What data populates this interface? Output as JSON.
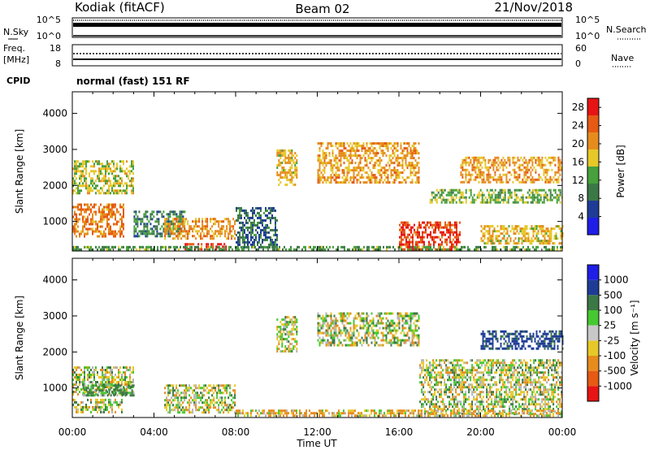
{
  "header": {
    "site": "Kodiak (fitACF)",
    "beam": "Beam 02",
    "date": "21/Nov/2018"
  },
  "noise_panel": {
    "left_label": "N.Sky",
    "right_label": "N.Search",
    "left_ticks": [
      "10^5",
      "10^0"
    ],
    "right_ticks": [
      "10^5",
      "10^0"
    ]
  },
  "freq_panel": {
    "left_label_1": "Freq.",
    "left_label_2": "[MHz]",
    "left_ticks": [
      "18",
      "8"
    ],
    "right_label": "Nave",
    "right_ticks": [
      "60",
      "0"
    ],
    "cpid_label": "CPID",
    "cpid_value": "normal (fast) 151 RF"
  },
  "colors": {
    "power_scale": [
      "#1e1ee6",
      "#1e3c96",
      "#3c7846",
      "#46a03c",
      "#e6c828",
      "#e68c1e",
      "#e65a14",
      "#e61414"
    ],
    "velocity_scale": [
      "#1e1ee6",
      "#1e3c96",
      "#3c7846",
      "#46c832",
      "#c8c8c8",
      "#e6c828",
      "#e68c1e",
      "#e65a14",
      "#e61414"
    ],
    "ground_scatter": "#b4b4b4"
  },
  "chart_data": [
    {
      "type": "heatmap",
      "name": "power",
      "xlabel": "",
      "ylabel": "Slant Range [km]",
      "xlim": [
        0,
        24
      ],
      "ylim": [
        180,
        4600
      ],
      "x_ticks": [
        "00:00",
        "04:00",
        "08:00",
        "12:00",
        "16:00",
        "20:00",
        "00:00"
      ],
      "y_ticks": [
        1000,
        2000,
        3000,
        4000
      ],
      "colorbar_label": "Power [dB]",
      "colorbar_ticks": [
        4,
        8,
        12,
        16,
        20,
        24,
        28
      ],
      "colorbar_range": [
        0,
        30
      ],
      "regions": [
        {
          "t": [
            0.0,
            2.5
          ],
          "r": [
            600,
            1500
          ],
          "v": 22
        },
        {
          "t": [
            0.0,
            3.0
          ],
          "r": [
            1800,
            2700
          ],
          "v": 16
        },
        {
          "t": [
            3.0,
            5.5
          ],
          "r": [
            600,
            1300
          ],
          "v": 10
        },
        {
          "t": [
            4.5,
            8.0
          ],
          "r": [
            500,
            1100
          ],
          "v": 20
        },
        {
          "t": [
            5.5,
            7.5
          ],
          "r": [
            200,
            400
          ],
          "v": 28
        },
        {
          "t": [
            8.0,
            10.0
          ],
          "r": [
            300,
            1400
          ],
          "v": 8
        },
        {
          "t": [
            10.0,
            11.0
          ],
          "r": [
            2000,
            3000
          ],
          "v": 18
        },
        {
          "t": [
            12.0,
            17.0
          ],
          "r": [
            2100,
            3200
          ],
          "v": 20
        },
        {
          "t": [
            16.0,
            19.0
          ],
          "r": [
            200,
            1000
          ],
          "v": 26
        },
        {
          "t": [
            17.5,
            24.0
          ],
          "r": [
            1500,
            1900
          ],
          "v": 14
        },
        {
          "t": [
            19.0,
            24.0
          ],
          "r": [
            2100,
            2800
          ],
          "v": 20
        },
        {
          "t": [
            20.0,
            24.0
          ],
          "r": [
            400,
            900
          ],
          "v": 18
        },
        {
          "t": [
            0.0,
            24.0
          ],
          "r": [
            200,
            320
          ],
          "v": 12
        }
      ]
    },
    {
      "type": "heatmap",
      "name": "velocity",
      "xlabel": "Time UT",
      "ylabel": "Slant Range [km]",
      "xlim": [
        0,
        24
      ],
      "ylim": [
        180,
        4600
      ],
      "x_ticks": [
        "00:00",
        "04:00",
        "08:00",
        "12:00",
        "16:00",
        "20:00",
        "00:00"
      ],
      "y_ticks": [
        1000,
        2000,
        3000,
        4000
      ],
      "colorbar_label": "Velocity [m s⁻¹]",
      "colorbar_ticks": [
        "1000",
        "500",
        "100",
        "25",
        "-25",
        "-100",
        "-500",
        "-1000"
      ],
      "regions": [
        {
          "t": [
            0.0,
            3.0
          ],
          "r": [
            800,
            1600
          ],
          "v": 0
        },
        {
          "t": [
            0.0,
            2.5
          ],
          "r": [
            300,
            700
          ],
          "v": 0
        },
        {
          "t": [
            0.5,
            3.0
          ],
          "r": [
            800,
            1100
          ],
          "v": 150
        },
        {
          "t": [
            4.5,
            8.0
          ],
          "r": [
            300,
            1100
          ],
          "v": 0
        },
        {
          "t": [
            10.0,
            11.0
          ],
          "r": [
            2000,
            3000
          ],
          "v": 0
        },
        {
          "t": [
            12.0,
            17.0
          ],
          "r": [
            2200,
            3100
          ],
          "v": 0
        },
        {
          "t": [
            17.0,
            24.0
          ],
          "r": [
            300,
            1800
          ],
          "v": 0
        },
        {
          "t": [
            20.0,
            24.0
          ],
          "r": [
            2100,
            2600
          ],
          "v": 600
        },
        {
          "t": [
            8.0,
            24.0
          ],
          "r": [
            200,
            400
          ],
          "v": -80
        }
      ]
    }
  ]
}
